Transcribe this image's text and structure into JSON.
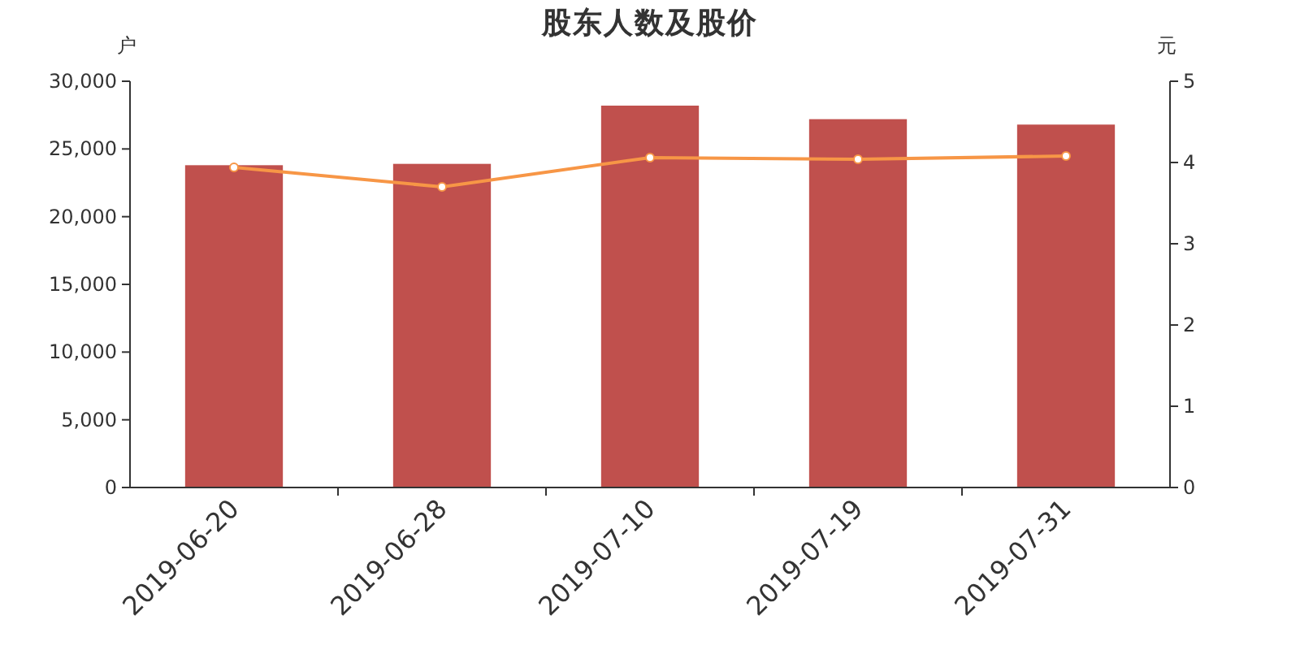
{
  "chart_data": {
    "type": "bar",
    "title": "股东人数及股价",
    "ylabel": "户",
    "y2label": "元",
    "categories": [
      "2019-06-20",
      "2019-06-28",
      "2019-07-10",
      "2019-07-19",
      "2019-07-31"
    ],
    "series": [
      {
        "color": "#c0504d",
        "values": [
          23800,
          23900,
          28200,
          27200,
          26800
        ]
      },
      {
        "type": "line",
        "axis": "y2",
        "color": "#f79646",
        "marker": "circle",
        "values": [
          3.94,
          3.7,
          4.06,
          4.04,
          4.08
        ]
      }
    ],
    "ylim": [
      0,
      30000
    ],
    "yticks": [
      0,
      {
        "value": 5000,
        "label": "5,000"
      },
      {
        "value": 10000,
        "label": "10,000"
      },
      {
        "value": 15000,
        "label": "15,000"
      },
      {
        "value": 20000,
        "label": "20,000"
      },
      {
        "value": 25000,
        "label": "25,000"
      },
      {
        "value": 30000,
        "label": "30,000"
      }
    ],
    "y2lim": [
      0,
      5
    ],
    "y2ticks": [
      0,
      1,
      2,
      3,
      4,
      5
    ]
  }
}
